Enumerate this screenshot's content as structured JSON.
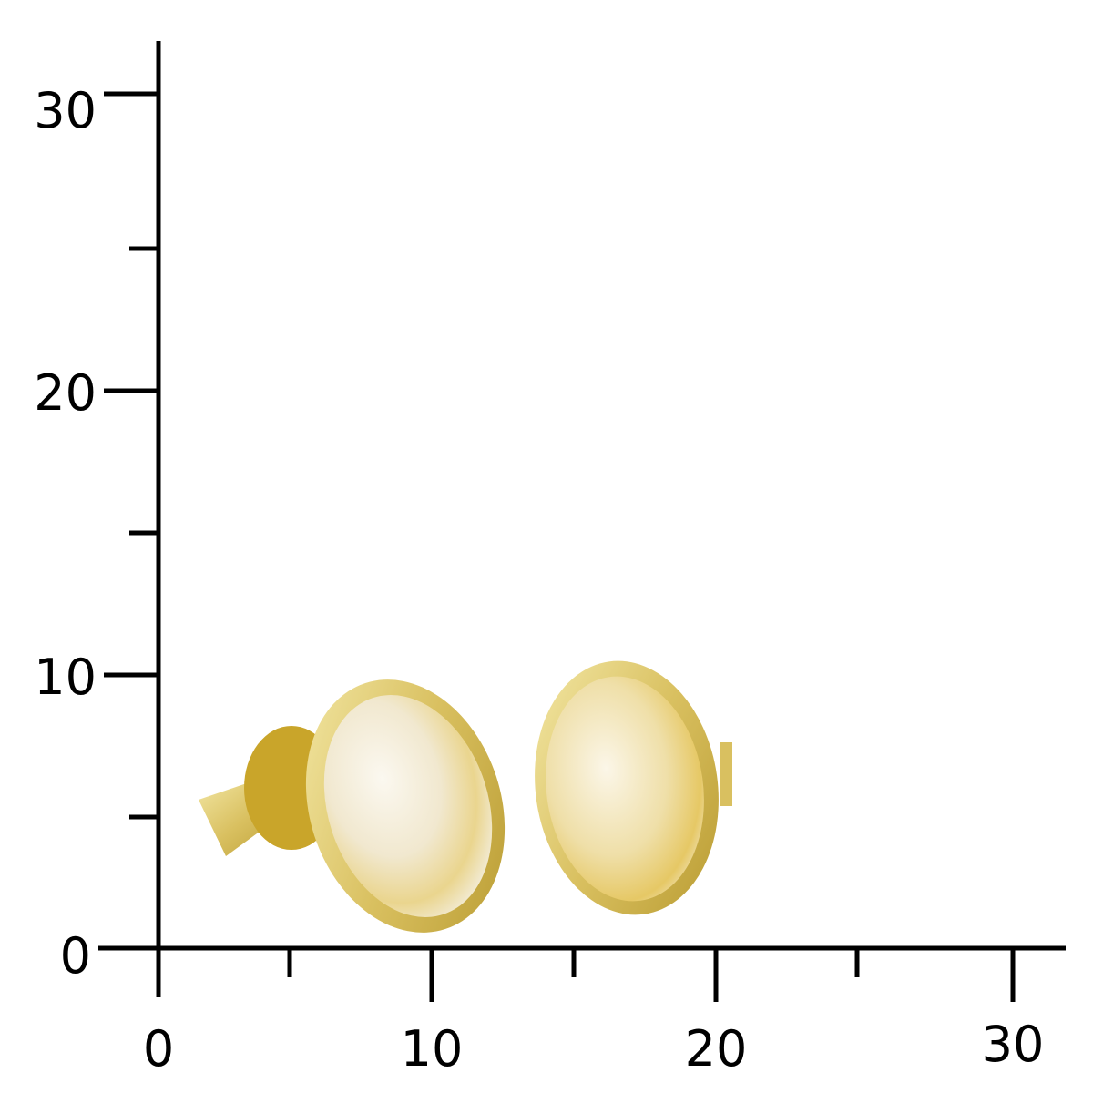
{
  "scale": {
    "y_ticks": [
      "0",
      "10",
      "20",
      "30"
    ],
    "x_ticks": [
      "0",
      "10",
      "20",
      "30"
    ]
  },
  "photo": {
    "subject": "earring-pair",
    "colors": {
      "gold": "#d9c060",
      "pearl": "#f3ecd6",
      "yellow_streak": "#e8cf7a",
      "axis": "#000000"
    }
  }
}
